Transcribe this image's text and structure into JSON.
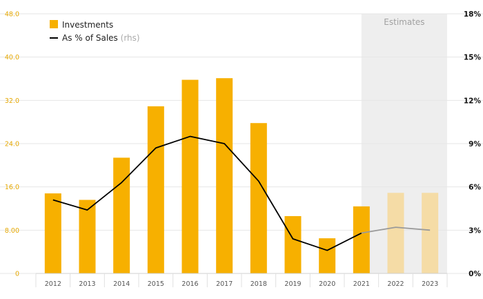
{
  "chart_data": {
    "type": "bar",
    "categories": [
      "2012",
      "2013",
      "2014",
      "2015",
      "2016",
      "2017",
      "2018",
      "2019",
      "2020",
      "2021",
      "2022",
      "2023"
    ],
    "series": [
      {
        "name": "Investments",
        "kind": "bar",
        "axis": "left",
        "values": [
          14.8,
          13.6,
          21.4,
          30.9,
          35.8,
          36.1,
          27.8,
          10.6,
          6.5,
          12.4,
          14.9,
          14.9
        ],
        "estimate_flags": [
          false,
          false,
          false,
          false,
          false,
          false,
          false,
          false,
          false,
          false,
          true,
          true
        ]
      },
      {
        "name": "As % of Sales",
        "name_suffix": "(rhs)",
        "kind": "line",
        "axis": "right",
        "values": [
          5.1,
          4.4,
          6.3,
          8.7,
          9.5,
          9.0,
          6.4,
          2.4,
          1.6,
          2.8,
          3.2,
          3.0
        ],
        "estimate_flags": [
          false,
          false,
          false,
          false,
          false,
          false,
          false,
          false,
          false,
          false,
          true,
          true
        ]
      }
    ],
    "left_axis": {
      "ylim": [
        0,
        48
      ],
      "ticks": [
        "0",
        "8.00",
        "16.0",
        "24.0",
        "32.0",
        "40.0",
        "48.0"
      ]
    },
    "right_axis": {
      "ylim": [
        0,
        18
      ],
      "ticks": [
        "0%",
        "3%",
        "6%",
        "9%",
        "12%",
        "15%",
        "18%"
      ]
    },
    "shaded_region": {
      "label": "Estimates",
      "from_category": "2021",
      "to_category": "2023"
    },
    "grid": true,
    "legend_position": "top-left"
  },
  "colors": {
    "bar": "#f7b000",
    "bar_estimate": "#f5dca6",
    "line": "#000000",
    "line_estimate": "#9a9a9a",
    "left_axis_text": "#e6a800",
    "right_axis_text": "#111111",
    "grid": "#e6e6e6",
    "shade": "#eeeeee",
    "shade_text": "#a0a0a0",
    "xaxis_text": "#555555"
  }
}
